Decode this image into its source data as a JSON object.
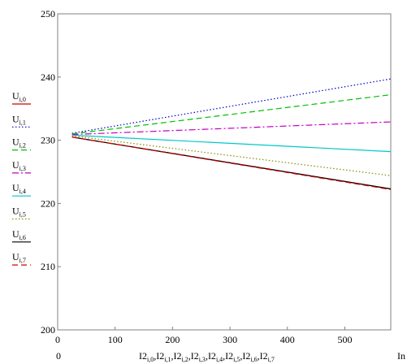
{
  "chart_data": {
    "type": "line",
    "x_axis": {
      "range": [
        0,
        580
      ],
      "ticks": [
        0,
        100,
        200,
        300,
        400,
        500
      ],
      "tick_labels": [
        "0",
        "100",
        "200",
        "300",
        "400",
        "500"
      ],
      "min_label": "0",
      "max_label": "In",
      "label_parts": [
        {
          "base": "I2",
          "sub": "i,0"
        },
        {
          "base": "I2",
          "sub": "i,1"
        },
        {
          "base": "I2",
          "sub": "i,2"
        },
        {
          "base": "I2",
          "sub": "i,3"
        },
        {
          "base": "I2",
          "sub": "i,4"
        },
        {
          "base": "I2",
          "sub": "i,5"
        },
        {
          "base": "I2",
          "sub": "i,6"
        },
        {
          "base": "I2",
          "sub": "i,7"
        }
      ],
      "label_separator": " , "
    },
    "y_axis": {
      "range": [
        200,
        250
      ],
      "ticks": [
        200,
        210,
        220,
        230,
        240,
        250
      ],
      "tick_labels": [
        "200",
        "210",
        "220",
        "230",
        "240",
        "250"
      ]
    },
    "grid": false,
    "legend_position": "left",
    "series": [
      {
        "name_base": "U",
        "name_sub": "i,0",
        "color": "#d00000",
        "dash": "solid",
        "x": [
          25,
          580
        ],
        "y": [
          230.5,
          222.3
        ]
      },
      {
        "name_base": "U",
        "name_sub": "i,1",
        "color": "#0000c8",
        "dash": "dot",
        "x": [
          25,
          580
        ],
        "y": [
          231.1,
          239.7
        ]
      },
      {
        "name_base": "U",
        "name_sub": "i,2",
        "color": "#00c000",
        "dash": "dash",
        "x": [
          25,
          580
        ],
        "y": [
          231.0,
          237.2
        ]
      },
      {
        "name_base": "U",
        "name_sub": "i,3",
        "color": "#c000c0",
        "dash": "dashdot",
        "x": [
          25,
          580
        ],
        "y": [
          230.9,
          232.9
        ]
      },
      {
        "name_base": "U",
        "name_sub": "i,4",
        "color": "#00c8c8",
        "dash": "solid",
        "x": [
          25,
          580
        ],
        "y": [
          230.8,
          228.2
        ]
      },
      {
        "name_base": "U",
        "name_sub": "i,5",
        "color": "#8a8a00",
        "dash": "dot",
        "x": [
          25,
          580
        ],
        "y": [
          230.7,
          224.4
        ]
      },
      {
        "name_base": "U",
        "name_sub": "i,6",
        "color": "#000000",
        "dash": "solid",
        "x": [
          25,
          580
        ],
        "y": [
          230.5,
          222.3
        ]
      },
      {
        "name_base": "U",
        "name_sub": "i,7",
        "color": "#d00000",
        "dash": "dash",
        "x": [
          25,
          580
        ],
        "y": [
          230.5,
          222.2
        ]
      }
    ]
  }
}
